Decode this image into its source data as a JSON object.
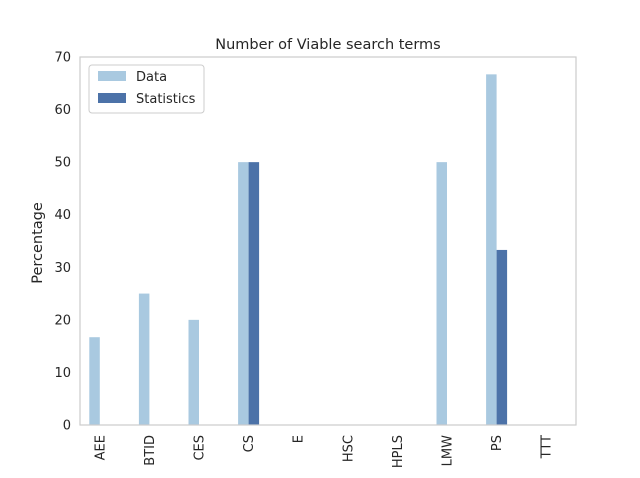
{
  "chart_data": {
    "type": "bar",
    "title": "Number of Viable search terms",
    "xlabel": "",
    "ylabel": "Percentage",
    "ylim": [
      0,
      70
    ],
    "yticks": [
      0,
      10,
      20,
      30,
      40,
      50,
      60,
      70
    ],
    "grid": false,
    "legend_position": "top-left",
    "categories": [
      "AEE",
      "BTID",
      "CES",
      "CS",
      "E",
      "HSC",
      "HPLS",
      "LMW",
      "PS",
      "TTT"
    ],
    "series": [
      {
        "name": "Data",
        "color": "#a9c9e0",
        "values": [
          16.7,
          25.0,
          20.0,
          50.0,
          0,
          0,
          0,
          50.0,
          66.7,
          0
        ]
      },
      {
        "name": "Statistics",
        "color": "#4c72a8",
        "values": [
          0,
          0,
          0,
          50.0,
          0,
          0,
          0,
          0,
          33.3,
          0
        ]
      }
    ]
  }
}
